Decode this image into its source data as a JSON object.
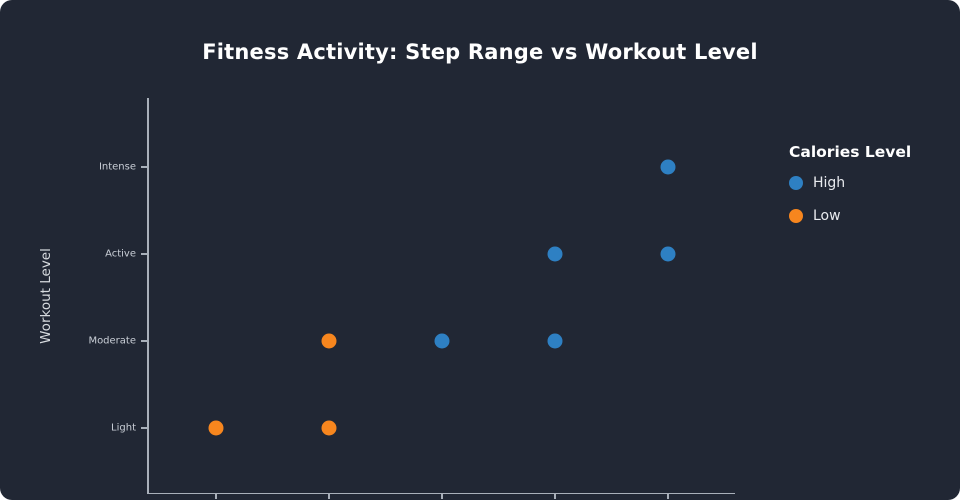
{
  "card": {
    "background": "#212734"
  },
  "chart_data": {
    "type": "scatter",
    "title": "Fitness Activity: Step Range vs Workout Level",
    "xlabel": "",
    "ylabel": "Workout Level",
    "y_categories": [
      "Light",
      "Moderate",
      "Active",
      "Intense"
    ],
    "x_tick_count": 5,
    "grid": false,
    "legend": {
      "title": "Calories Level",
      "position": "right",
      "entries": [
        {
          "label": "High",
          "color": "#2e80c3"
        },
        {
          "label": "Low",
          "color": "#f7861e"
        }
      ]
    },
    "series": [
      {
        "name": "High",
        "color": "#2e80c3",
        "points": [
          {
            "x_index": 2,
            "y": "Moderate"
          },
          {
            "x_index": 3,
            "y": "Moderate"
          },
          {
            "x_index": 3,
            "y": "Active"
          },
          {
            "x_index": 4,
            "y": "Active"
          },
          {
            "x_index": 4,
            "y": "Intense"
          }
        ]
      },
      {
        "name": "Low",
        "color": "#f7861e",
        "points": [
          {
            "x_index": 0,
            "y": "Light"
          },
          {
            "x_index": 1,
            "y": "Light"
          },
          {
            "x_index": 1,
            "y": "Moderate"
          }
        ]
      }
    ]
  }
}
